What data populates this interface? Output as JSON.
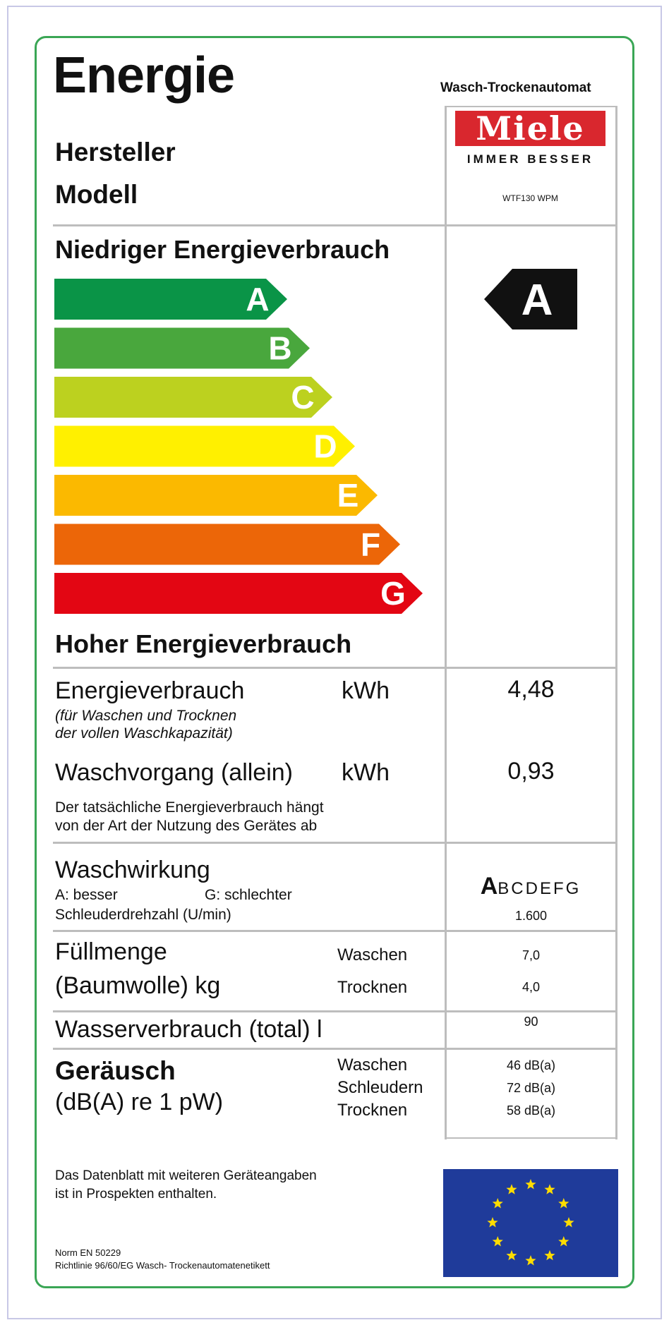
{
  "header": {
    "title": "Energie",
    "appliance_type": "Wasch-Trockenautomat",
    "manufacturer_label": "Hersteller",
    "model_label": "Modell",
    "brand_name": "Miele",
    "brand_slogan": "IMMER BESSER",
    "model_number": "WTF130 WPM"
  },
  "scale": {
    "top_label": "Niedriger Energieverbrauch",
    "bottom_label": "Hoher Energieverbrauch",
    "classes": [
      {
        "letter": "A",
        "color": "#0a9447"
      },
      {
        "letter": "B",
        "color": "#49a73d"
      },
      {
        "letter": "C",
        "color": "#bcd11f"
      },
      {
        "letter": "D",
        "color": "#fff000"
      },
      {
        "letter": "E",
        "color": "#fbb900"
      },
      {
        "letter": "F",
        "color": "#ec6608"
      },
      {
        "letter": "G",
        "color": "#e30613"
      }
    ],
    "rating": "A",
    "rating_color": "#111111"
  },
  "energy": {
    "label": "Energieverbrauch",
    "unit": "kWh",
    "note_line1": "(für Waschen und Trocknen",
    "note_line2": "der vollen Waschkapazität)",
    "value": "4,48",
    "wash_label": "Waschvorgang (allein)",
    "wash_unit": "kWh",
    "wash_value": "0,93",
    "disclaimer_line1": "Der tatsächliche Energieverbrauch hängt",
    "disclaimer_line2": "von der Art der Nutzung des Gerätes ab"
  },
  "wash_performance": {
    "label": "Waschwirkung",
    "better": "A: besser",
    "worse": "G: schlechter",
    "spin_label": "Schleuderdrehzahl (U/min)",
    "rating": "A",
    "scale_rest": "BCDEFG",
    "spin_value": "1.600"
  },
  "capacity": {
    "label_line1": "Füllmenge",
    "label_line2": "(Baumwolle) kg",
    "wash_label": "Waschen",
    "dry_label": "Trocknen",
    "wash_value": "7,0",
    "dry_value": "4,0"
  },
  "water": {
    "label": "Wasserverbrauch (total) l",
    "value": "90"
  },
  "noise": {
    "label": "Geräusch",
    "unit_label": "(dB(A) re 1 pW)",
    "wash_label": "Waschen",
    "spin_label": "Schleudern",
    "dry_label": "Trocknen",
    "wash_value": "46 dB(a)",
    "spin_value": "72 dB(a)",
    "dry_value": "58 dB(a)"
  },
  "footer": {
    "datasheet_line1": "Das Datenblatt mit weiteren Geräteangaben",
    "datasheet_line2": "ist in Prospekten enthalten.",
    "norm": "Norm EN 50229",
    "directive": "Richtlinie 96/60/EG Wasch- Trockenautomatenetikett"
  },
  "colors": {
    "frame_green": "#3aa655",
    "eu_blue": "#1f3b9a",
    "eu_star": "#ffdd00",
    "brand_red": "#d9272e"
  }
}
